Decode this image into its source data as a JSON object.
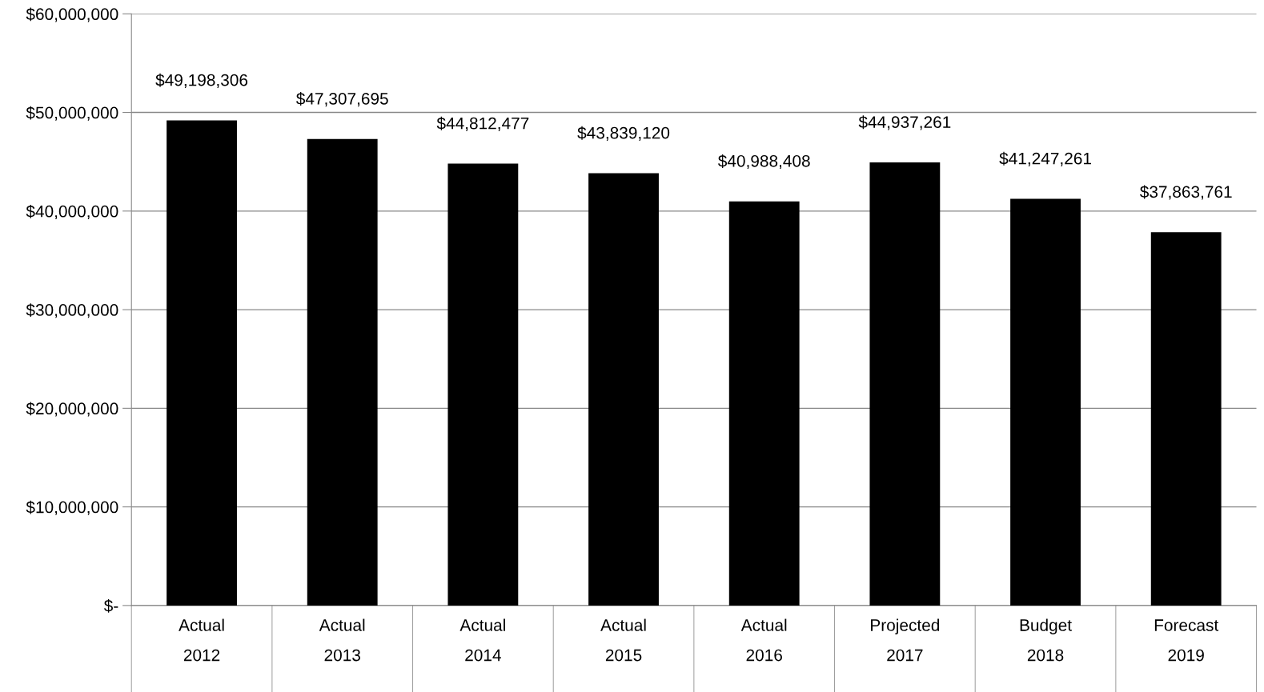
{
  "chart_data": {
    "type": "bar",
    "categories": [
      "Actual\n2012",
      "Actual\n2013",
      "Actual\n2014",
      "Actual\n2015",
      "Actual\n2016",
      "Projected\n2017",
      "Budget\n2018",
      "Forecast\n2019"
    ],
    "values": [
      49198306,
      47307695,
      44812477,
      43839120,
      40988408,
      44937261,
      41247261,
      37863761
    ],
    "color": "#000000",
    "value_labels": [
      "$49,198,306",
      "$47,307,695",
      "$44,812,477",
      "$43,839,120",
      "$40,988,408",
      "$44,937,261",
      "$41,247,261",
      "$37,863,761"
    ],
    "ylim": [
      0,
      60000000
    ],
    "yticks": [
      {
        "value": 0,
        "label": "$-"
      },
      {
        "value": 10000000,
        "label": "$10,000,000"
      },
      {
        "value": 20000000,
        "label": "$20,000,000"
      },
      {
        "value": 30000000,
        "label": "$30,000,000"
      },
      {
        "value": 40000000,
        "label": "$40,000,000"
      },
      {
        "value": 50000000,
        "label": "$50,000,000"
      },
      {
        "value": 60000000,
        "label": "$60,000,000"
      }
    ],
    "grid": "y",
    "legend": false
  }
}
